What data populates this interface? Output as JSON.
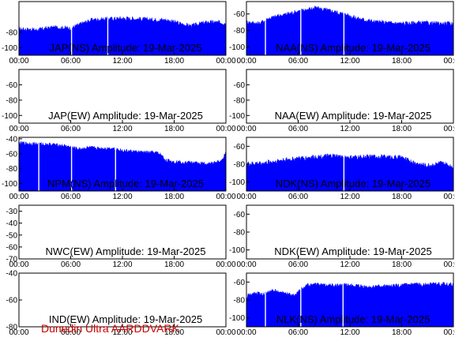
{
  "footer": "Dunedin Ultra AARDDVARK",
  "colors": {
    "trace": "#0000ff",
    "footer": "#cc0000"
  },
  "chart_data": [
    {
      "type": "area",
      "title": "JAP(NS) Amplitude: 19-Mar-2025",
      "ylim": [
        -110,
        -40
      ],
      "yticks": [
        "-80",
        "-100"
      ],
      "xticks": [
        "00:00",
        "06:00",
        "12:00",
        "18:00",
        "00:00"
      ],
      "profile": [
        [
          0,
          -76
        ],
        [
          2,
          -77
        ],
        [
          4,
          -74
        ],
        [
          6,
          -75
        ],
        [
          7.5,
          -68
        ],
        [
          8.5,
          -64
        ],
        [
          10,
          -63
        ],
        [
          12,
          -62
        ],
        [
          14,
          -63
        ],
        [
          16,
          -64
        ],
        [
          17,
          -64
        ],
        [
          18,
          -67
        ],
        [
          19,
          -70
        ],
        [
          20,
          -72
        ],
        [
          21,
          -69
        ],
        [
          22,
          -67
        ],
        [
          24,
          -68
        ]
      ],
      "noise": 3,
      "dropouts": [
        6.1,
        10.3
      ]
    },
    {
      "type": "area",
      "title": "NAA(NS) Amplitude: 19-Mar-2025",
      "ylim": [
        -110,
        -45
      ],
      "yticks": [
        "-60",
        "-80",
        "-100"
      ],
      "xticks": [
        "00:00",
        "06:00",
        "12:00",
        "18:00",
        "00:00"
      ],
      "profile": [
        [
          0,
          -70
        ],
        [
          1.5,
          -72
        ],
        [
          2.5,
          -66
        ],
        [
          4,
          -62
        ],
        [
          6,
          -57
        ],
        [
          8,
          -53
        ],
        [
          10,
          -57
        ],
        [
          11.5,
          -61
        ],
        [
          13,
          -66
        ],
        [
          15,
          -70
        ],
        [
          18,
          -72
        ],
        [
          20,
          -71
        ],
        [
          22,
          -72
        ],
        [
          24,
          -72
        ]
      ],
      "noise": 3,
      "dropouts": [
        2.2,
        6.3,
        11.3
      ]
    },
    {
      "type": "area",
      "title": "JAP(EW) Amplitude: 19-Mar-2025",
      "ylim": [
        -110,
        -40
      ],
      "yticks": [
        "-60",
        "-80",
        "-100"
      ],
      "xticks": [
        "00:00",
        "06:00",
        "12:00",
        "18:00",
        "00:00"
      ],
      "profile": [],
      "noise": 0,
      "dropouts": []
    },
    {
      "type": "area",
      "title": "NAA(EW) Amplitude: 19-Mar-2025",
      "ylim": [
        -110,
        -40
      ],
      "yticks": [
        "-60",
        "-80",
        "-100"
      ],
      "xticks": [
        "00:00",
        "06:00",
        "12:00",
        "18:00",
        "00:00"
      ],
      "profile": [],
      "noise": 0,
      "dropouts": []
    },
    {
      "type": "area",
      "title": "NPM(NS) Amplitude: 19-Mar-2025",
      "ylim": [
        -110,
        -38
      ],
      "yticks": [
        "-40",
        "-60",
        "-80",
        "-100"
      ],
      "xticks": [
        "00:00",
        "06:00",
        "12:00",
        "18:00",
        "00:00"
      ],
      "profile": [
        [
          0,
          -46
        ],
        [
          2,
          -47
        ],
        [
          4,
          -48
        ],
        [
          5.5,
          -50
        ],
        [
          7,
          -54
        ],
        [
          8,
          -52
        ],
        [
          9.5,
          -53
        ],
        [
          11,
          -53
        ],
        [
          12,
          -56
        ],
        [
          14,
          -58
        ],
        [
          16,
          -59
        ],
        [
          16.5,
          -62
        ],
        [
          17,
          -69
        ],
        [
          18,
          -71
        ],
        [
          20,
          -72
        ],
        [
          22,
          -74
        ],
        [
          23.5,
          -70
        ],
        [
          24,
          -58
        ]
      ],
      "noise": 2.5,
      "dropouts": [
        2.3,
        6.1,
        11.2
      ]
    },
    {
      "type": "area",
      "title": "NDK(NS) Amplitude: 19-Mar-2025",
      "ylim": [
        -110,
        -50
      ],
      "yticks": [
        "-60",
        "-80",
        "-100"
      ],
      "xticks": [
        "00:00",
        "06:00",
        "12:00",
        "18:00",
        "00:00"
      ],
      "profile": [
        [
          0,
          -80
        ],
        [
          2,
          -79
        ],
        [
          4,
          -76
        ],
        [
          6,
          -74
        ],
        [
          8,
          -72
        ],
        [
          10,
          -71
        ],
        [
          12,
          -73
        ],
        [
          14,
          -72
        ],
        [
          16,
          -72
        ],
        [
          18,
          -73
        ],
        [
          19.5,
          -79
        ],
        [
          21,
          -82
        ],
        [
          22.5,
          -79
        ],
        [
          24,
          -83
        ]
      ],
      "noise": 3,
      "dropouts": [
        11.3
      ]
    },
    {
      "type": "area",
      "title": "NWC(EW) Amplitude: 19-Mar-2025",
      "ylim": [
        -70,
        -25
      ],
      "yticks": [
        "-30",
        "-40",
        "-50",
        "-60",
        "-70"
      ],
      "xticks": [
        "00:00",
        "06:00",
        "12:00",
        "18:00",
        "00:00"
      ],
      "profile": [],
      "noise": 0,
      "dropouts": []
    },
    {
      "type": "area",
      "title": "NDK(EW) Amplitude: 19-Mar-2025",
      "ylim": [
        -110,
        -50
      ],
      "yticks": [
        "-60",
        "-80",
        "-100"
      ],
      "xticks": [
        "00:00",
        "06:00",
        "12:00",
        "18:00",
        "00:00"
      ],
      "profile": [],
      "noise": 0,
      "dropouts": []
    },
    {
      "type": "area",
      "title": "IND(EW) Amplitude: 19-Mar-2025",
      "ylim": [
        -80,
        -40
      ],
      "yticks": [
        "-40",
        "-60",
        "-80"
      ],
      "xticks": [
        "00:00",
        "06:00",
        "12:00",
        "18:00",
        "00:00"
      ],
      "profile": [],
      "noise": 0,
      "dropouts": []
    },
    {
      "type": "area",
      "title": "NLK(NS) Amplitude: 19-Mar-2025",
      "ylim": [
        -110,
        -50
      ],
      "yticks": [
        "-60",
        "-80",
        "-100"
      ],
      "xticks": [
        "00:00",
        "06:00",
        "12:00",
        "18:00",
        "00:00"
      ],
      "profile": [
        [
          0,
          -76
        ],
        [
          1,
          -73
        ],
        [
          2,
          -74
        ],
        [
          3,
          -70
        ],
        [
          4,
          -72
        ],
        [
          5.5,
          -76
        ],
        [
          6,
          -71
        ],
        [
          7,
          -64
        ],
        [
          8,
          -63
        ],
        [
          10,
          -64
        ],
        [
          12,
          -64
        ],
        [
          14,
          -66
        ],
        [
          16,
          -65
        ],
        [
          18,
          -64
        ],
        [
          20,
          -63
        ],
        [
          22,
          -62
        ],
        [
          24,
          -63
        ]
      ],
      "noise": 2.5,
      "dropouts": [
        2.2,
        6.3,
        11.2
      ]
    }
  ]
}
